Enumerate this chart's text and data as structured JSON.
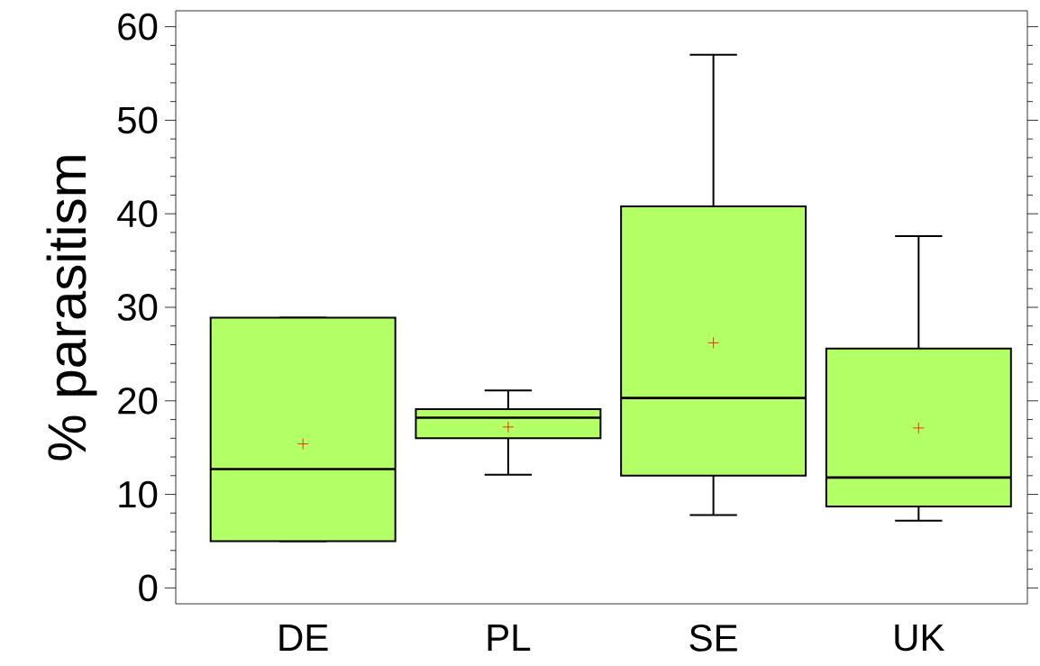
{
  "chart_data": {
    "type": "box",
    "ylabel": "% parasitism",
    "categories": [
      "DE",
      "PL",
      "SE",
      "UK"
    ],
    "color": "#b3ff66",
    "boxes": [
      {
        "low": 5.0,
        "q1": 5.0,
        "median": 12.7,
        "q3": 28.9,
        "high": 28.9,
        "mean": 15.4
      },
      {
        "low": 12.1,
        "q1": 16.0,
        "median": 18.2,
        "q3": 19.1,
        "high": 21.1,
        "mean": 17.2
      },
      {
        "low": 7.8,
        "q1": 12.0,
        "median": 20.3,
        "q3": 40.8,
        "high": 57.0,
        "mean": 26.2
      },
      {
        "low": 7.2,
        "q1": 8.7,
        "median": 11.8,
        "q3": 25.6,
        "high": 37.6,
        "mean": 17.1
      }
    ],
    "ylim": [
      -1.7,
      61.7
    ],
    "yticks": [
      0,
      10,
      20,
      30,
      40,
      50,
      60
    ]
  }
}
